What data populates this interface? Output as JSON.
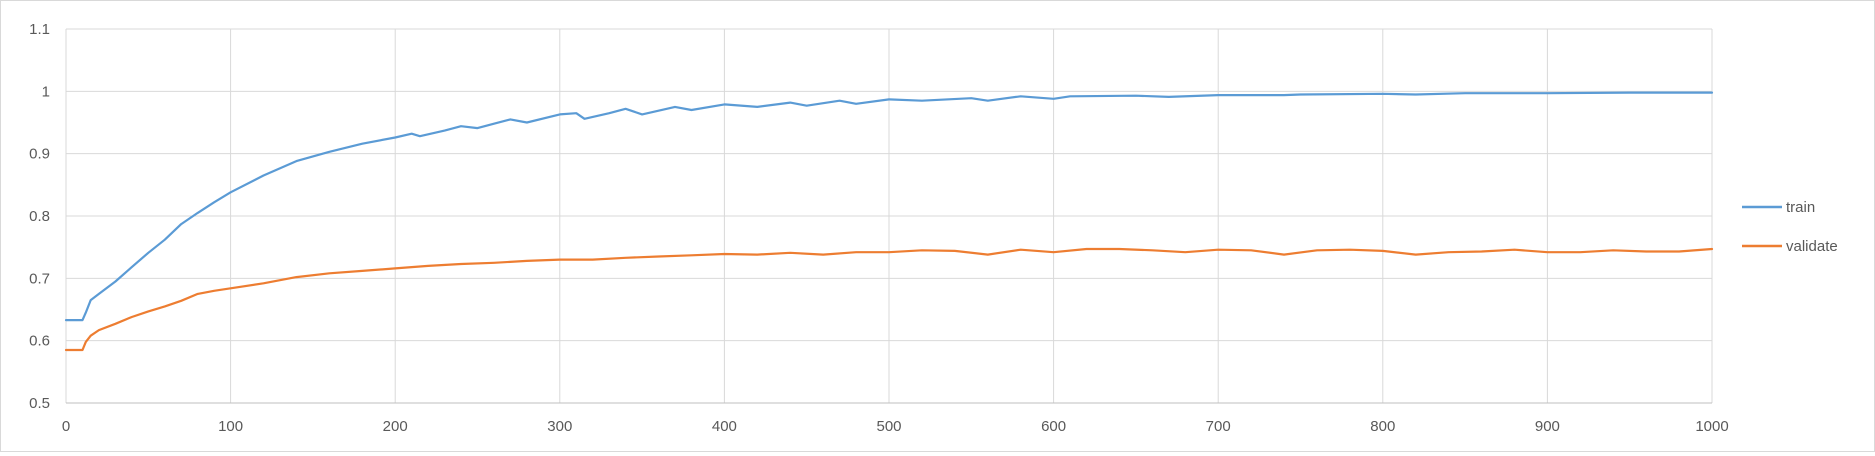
{
  "chart_data": {
    "type": "line",
    "title": "",
    "xlabel": "",
    "ylabel": "",
    "xlim": [
      0,
      1000
    ],
    "ylim": [
      0.5,
      1.1
    ],
    "x_ticks": [
      "0",
      "100",
      "200",
      "300",
      "400",
      "500",
      "600",
      "700",
      "800",
      "900",
      "1000"
    ],
    "y_ticks": [
      "0.5",
      "0.6",
      "0.7",
      "0.8",
      "0.9",
      "1",
      "1.1"
    ],
    "grid": true,
    "legend_position": "right",
    "series": [
      {
        "name": "train",
        "color": "#5b9bd5",
        "x": [
          0,
          10,
          12,
          15,
          20,
          30,
          40,
          50,
          60,
          70,
          80,
          90,
          100,
          120,
          140,
          160,
          180,
          200,
          210,
          215,
          230,
          240,
          250,
          260,
          270,
          280,
          300,
          310,
          315,
          330,
          340,
          350,
          370,
          380,
          400,
          420,
          440,
          450,
          470,
          480,
          500,
          520,
          550,
          560,
          580,
          600,
          610,
          650,
          670,
          700,
          740,
          750,
          800,
          820,
          850,
          900,
          950,
          1000
        ],
        "y": [
          0.633,
          0.633,
          0.645,
          0.665,
          0.675,
          0.695,
          0.718,
          0.741,
          0.762,
          0.787,
          0.805,
          0.822,
          0.838,
          0.865,
          0.888,
          0.903,
          0.916,
          0.926,
          0.932,
          0.928,
          0.937,
          0.944,
          0.941,
          0.948,
          0.955,
          0.95,
          0.963,
          0.965,
          0.956,
          0.965,
          0.972,
          0.963,
          0.975,
          0.97,
          0.979,
          0.975,
          0.982,
          0.977,
          0.985,
          0.98,
          0.987,
          0.985,
          0.989,
          0.985,
          0.992,
          0.988,
          0.992,
          0.993,
          0.991,
          0.994,
          0.994,
          0.995,
          0.996,
          0.995,
          0.997,
          0.997,
          0.998,
          0.998
        ]
      },
      {
        "name": "validate",
        "color": "#ed7d31",
        "x": [
          0,
          10,
          12,
          15,
          20,
          30,
          40,
          50,
          60,
          70,
          80,
          90,
          100,
          120,
          140,
          160,
          180,
          200,
          220,
          240,
          260,
          280,
          300,
          320,
          340,
          360,
          380,
          400,
          420,
          440,
          460,
          480,
          500,
          520,
          540,
          560,
          580,
          600,
          620,
          640,
          660,
          680,
          700,
          720,
          740,
          760,
          780,
          800,
          820,
          840,
          860,
          880,
          900,
          920,
          940,
          960,
          980,
          1000
        ],
        "y": [
          0.585,
          0.585,
          0.598,
          0.608,
          0.617,
          0.627,
          0.638,
          0.647,
          0.655,
          0.664,
          0.675,
          0.68,
          0.684,
          0.692,
          0.702,
          0.708,
          0.712,
          0.716,
          0.72,
          0.723,
          0.725,
          0.728,
          0.73,
          0.73,
          0.733,
          0.735,
          0.737,
          0.739,
          0.738,
          0.741,
          0.738,
          0.742,
          0.742,
          0.745,
          0.744,
          0.738,
          0.746,
          0.742,
          0.747,
          0.747,
          0.745,
          0.742,
          0.746,
          0.745,
          0.738,
          0.745,
          0.746,
          0.744,
          0.738,
          0.742,
          0.743,
          0.746,
          0.742,
          0.742,
          0.745,
          0.743,
          0.743,
          0.747
        ]
      }
    ]
  }
}
